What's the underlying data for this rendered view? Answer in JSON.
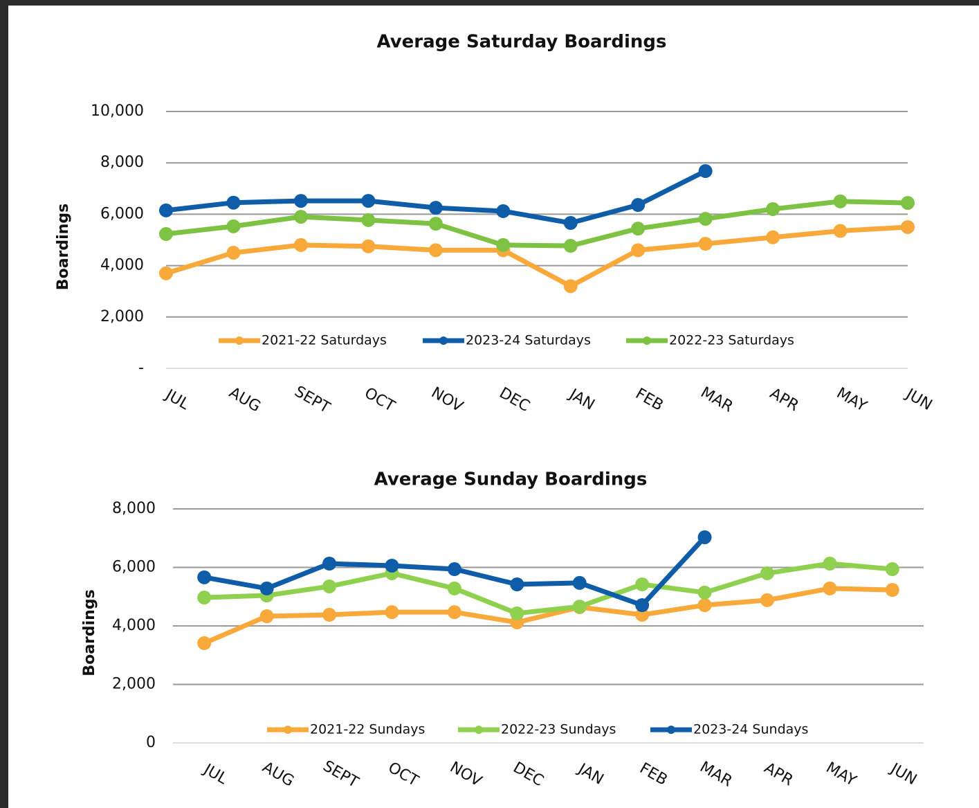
{
  "chart_data": [
    {
      "type": "line",
      "title": "Average Saturday Boardings",
      "y_label": "Boardings",
      "categories": [
        "JUL",
        "AUG",
        "SEPT",
        "OCT",
        "NOV",
        "DEC",
        "JAN",
        "FEB",
        "MAR",
        "APR",
        "MAY",
        "JUN"
      ],
      "series": [
        {
          "name": "2021-22 Saturdays",
          "color": "#f9a93a",
          "values": [
            3700,
            4500,
            4800,
            4750,
            4600,
            4600,
            3200,
            4600,
            4850,
            5100,
            5350,
            5500
          ]
        },
        {
          "name": "2023-24 Saturdays",
          "color": "#0f5ca8",
          "values": [
            6150,
            6450,
            6520,
            6520,
            6250,
            6120,
            5660,
            6360,
            7680,
            null,
            null,
            null
          ]
        },
        {
          "name": "2022-23 Saturdays",
          "color": "#7dc242",
          "values": [
            5230,
            5530,
            5900,
            5770,
            5630,
            4800,
            4770,
            5440,
            5820,
            6200,
            6500,
            6440
          ]
        }
      ],
      "ylim": [
        0,
        10000
      ],
      "yticks": [
        {
          "value": 0,
          "label": "-"
        },
        {
          "value": 2000,
          "label": "2,000"
        },
        {
          "value": 4000,
          "label": "4,000"
        },
        {
          "value": 6000,
          "label": "6,000"
        },
        {
          "value": 8000,
          "label": "8,000"
        },
        {
          "value": 10000,
          "label": "10,000"
        }
      ],
      "grid": true
    },
    {
      "type": "line",
      "title": "Average Sunday Boardings",
      "y_label": "Boardings",
      "categories": [
        "JUL",
        "AUG",
        "SEPT",
        "OCT",
        "NOV",
        "DEC",
        "JAN",
        "FEB",
        "MAR",
        "APR",
        "MAY",
        "JUN"
      ],
      "series": [
        {
          "name": "2021-22 Sundays",
          "color": "#f9a93a",
          "values": [
            3410,
            4330,
            4380,
            4470,
            4470,
            4120,
            4640,
            4380,
            4710,
            4880,
            5280,
            5230
          ]
        },
        {
          "name": "2022-23 Sundays",
          "color": "#8fd14f",
          "values": [
            4970,
            5040,
            5350,
            5800,
            5280,
            4430,
            4660,
            5420,
            5140,
            5800,
            6130,
            5940
          ]
        },
        {
          "name": "2023-24 Sundays",
          "color": "#0f5ca8",
          "values": [
            5660,
            5280,
            6130,
            6060,
            5940,
            5420,
            5470,
            4710,
            7030,
            null,
            null,
            null
          ]
        }
      ],
      "ylim": [
        0,
        8000
      ],
      "yticks": [
        0,
        {
          "value": 2000,
          "label": "2,000"
        },
        {
          "value": 4000,
          "label": "4,000"
        },
        {
          "value": 6000,
          "label": "6,000"
        },
        {
          "value": 8000,
          "label": "8,000"
        }
      ],
      "grid": true
    }
  ]
}
